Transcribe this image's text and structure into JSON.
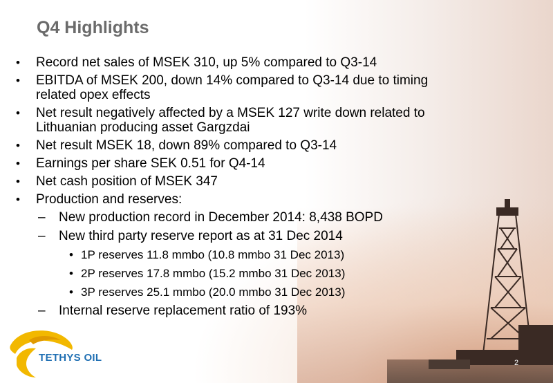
{
  "slide": {
    "title": "Q4 Highlights",
    "page_number": "2"
  },
  "bullets": [
    {
      "text": "Record net sales of MSEK 310, up 5% compared to Q3-14"
    },
    {
      "text": "EBITDA of MSEK 200, down 14% compared to Q3-14 due to timing",
      "text2": "related opex effects"
    },
    {
      "text": "Net result negatively affected by a MSEK 127 write down related to",
      "text2": "Lithuanian producing asset Gargzdai"
    },
    {
      "text": "Net result MSEK 18, down 89% compared to Q3-14"
    },
    {
      "text": "Earnings per share SEK 0.51 for Q4-14"
    },
    {
      "text": "Net cash position of MSEK 347"
    },
    {
      "text": "Production and reserves:"
    }
  ],
  "sub_bullets": [
    {
      "text": "New production record in December 2014: 8,438 BOPD"
    },
    {
      "text": "New third party reserve report as at 31 Dec 2014"
    },
    {
      "text": "Internal reserve replacement ratio of 193%"
    }
  ],
  "reserves": [
    {
      "text": "1P reserves 11.8 mmbo (10.8 mmbo 31 Dec 2013)"
    },
    {
      "text": "2P reserves 17.8 mmbo (15.2 mmbo 31 Dec 2013)"
    },
    {
      "text": "3P reserves 25.1 mmbo (20.0 mmbo 31 Dec 2013)"
    }
  ],
  "markers": {
    "bullet": "•",
    "dash": "–"
  },
  "logo": {
    "text": "TETHYS OIL",
    "color": "#1f6fb3",
    "accent": "#f2b800"
  }
}
